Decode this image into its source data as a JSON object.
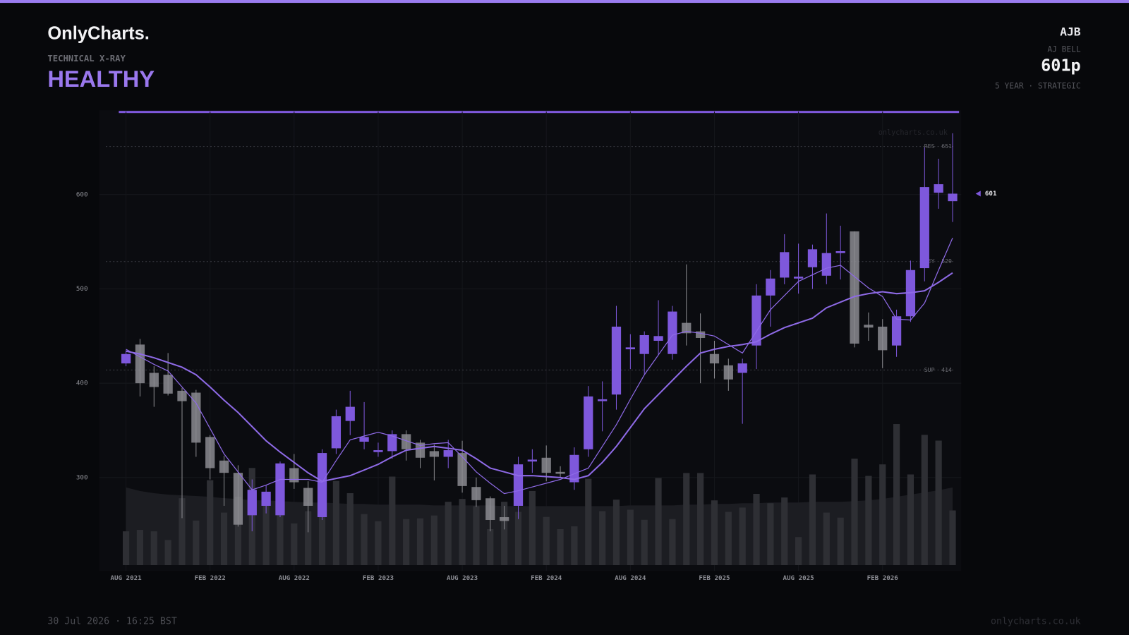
{
  "header": {
    "brand": "OnlyCharts.",
    "subtitle": "TECHNICAL X-RAY",
    "status": "HEALTHY",
    "ticker": "AJB",
    "company": "AJ BELL",
    "price": "601p",
    "horizon": "5 YEAR · STRATEGIC"
  },
  "footer": {
    "timestamp": "30 Jul 2026 · 16:25 BST",
    "site": "onlycharts.co.uk"
  },
  "chart_data": {
    "type": "candlestick",
    "watermark": "onlycharts.co.uk",
    "categories": [
      "AUG 2021",
      null,
      null,
      null,
      null,
      null,
      "FEB 2022",
      null,
      null,
      null,
      null,
      null,
      "AUG 2022",
      null,
      null,
      null,
      null,
      null,
      "FEB 2023",
      null,
      null,
      null,
      null,
      null,
      "AUG 2023",
      null,
      null,
      null,
      null,
      null,
      "FEB 2024",
      null,
      null,
      null,
      null,
      null,
      "AUG 2024",
      null,
      null,
      null,
      null,
      null,
      "FEB 2025",
      null,
      null,
      null,
      null,
      null,
      "AUG 2025",
      null,
      null,
      null,
      null,
      null,
      "FEB 2026",
      null,
      null,
      null,
      null,
      null
    ],
    "open": [
      421,
      441,
      411,
      409,
      392,
      390,
      343,
      318,
      305,
      260,
      270,
      260,
      310,
      289,
      258,
      331,
      360,
      338,
      327,
      328,
      346,
      337,
      328,
      322,
      326,
      290,
      278,
      258,
      270,
      317,
      321,
      306,
      295,
      330,
      381,
      388,
      436,
      431,
      445,
      431,
      464,
      455,
      431,
      419,
      411,
      440,
      493,
      512,
      511,
      523,
      514,
      538,
      561,
      462,
      460,
      440,
      471,
      522,
      602,
      593
    ],
    "high": [
      435,
      447,
      418,
      432,
      395,
      393,
      345,
      323,
      313,
      298,
      292,
      317,
      325,
      296,
      330,
      372,
      392,
      380,
      337,
      350,
      350,
      340,
      335,
      340,
      339,
      300,
      280,
      270,
      322,
      330,
      334,
      312,
      332,
      397,
      402,
      482,
      452,
      455,
      488,
      482,
      526,
      474,
      445,
      426,
      426,
      505,
      520,
      558,
      548,
      547,
      580,
      567,
      561,
      475,
      468,
      478,
      530,
      650,
      638,
      665
    ],
    "low": [
      418,
      386,
      375,
      387,
      257,
      322,
      298,
      270,
      248,
      243,
      262,
      258,
      288,
      242,
      255,
      325,
      345,
      330,
      322,
      320,
      318,
      310,
      297,
      310,
      284,
      269,
      243,
      245,
      256,
      305,
      296,
      300,
      287,
      322,
      349,
      372,
      415,
      410,
      430,
      425,
      440,
      400,
      405,
      392,
      357,
      415,
      460,
      505,
      495,
      500,
      505,
      510,
      438,
      445,
      416,
      428,
      465,
      508,
      585,
      571
    ],
    "close": [
      431,
      400,
      396,
      389,
      381,
      337,
      310,
      305,
      250,
      287,
      285,
      315,
      295,
      270,
      326,
      365,
      375,
      343,
      329,
      346,
      330,
      321,
      322,
      329,
      291,
      276,
      255,
      254,
      314,
      319,
      305,
      304,
      324,
      386,
      383,
      460,
      438,
      451,
      450,
      476,
      453,
      448,
      421,
      404,
      421,
      493,
      511,
      539,
      513,
      542,
      538,
      540,
      442,
      459,
      435,
      471,
      520,
      608,
      611,
      601
    ],
    "up_color": "#7e58dc",
    "down_color": "#8b8b90",
    "ma": [
      {
        "color": "#8e6ae6",
        "width": 2,
        "values": [
          434,
          431,
          427,
          422,
          417,
          409,
          396,
          382,
          369,
          354,
          339,
          327,
          316,
          305,
          296,
          299,
          302,
          308,
          314,
          322,
          329,
          331,
          333,
          331,
          329,
          320,
          310,
          306,
          302,
          302,
          301,
          300,
          298,
          302,
          316,
          333,
          353,
          373,
          388,
          403,
          418,
          432,
          436,
          439,
          441,
          444,
          452,
          459,
          464,
          469,
          480,
          486,
          492,
          495,
          497,
          495,
          496,
          498,
          507,
          517
        ]
      },
      {
        "color": "#8e6ae6",
        "width": 1.2,
        "values": [
          436,
          428,
          420,
          413,
          396,
          379,
          352,
          325,
          306,
          287,
          292,
          298,
          298,
          298,
          295,
          318,
          340,
          344,
          348,
          344,
          339,
          334,
          336,
          337,
          322,
          306,
          294,
          283,
          286,
          290,
          294,
          298,
          304,
          310,
          333,
          356,
          383,
          409,
          430,
          451,
          455,
          453,
          450,
          441,
          432,
          455,
          478,
          493,
          508,
          515,
          522,
          525,
          513,
          501,
          492,
          468,
          467,
          485,
          520,
          554
        ]
      }
    ],
    "volume": {
      "color": "#2e2f34",
      "lim": [
        0,
        200
      ],
      "values": [
        47,
        49,
        47,
        35,
        93,
        62,
        118,
        73,
        95,
        135,
        85,
        85,
        58,
        75,
        88,
        117,
        100,
        71,
        61,
        123,
        64,
        65,
        69,
        88,
        92,
        82,
        50,
        88,
        74,
        103,
        67,
        50,
        54,
        120,
        75,
        91,
        77,
        63,
        121,
        64,
        128,
        128,
        90,
        74,
        80,
        99,
        86,
        94,
        39,
        126,
        73,
        66,
        148,
        124,
        140,
        196,
        126,
        181,
        173,
        76
      ]
    },
    "volume_ma": {
      "color": "#1c1d22",
      "values": [
        108,
        103,
        100,
        98,
        97,
        96,
        95,
        93,
        92,
        90,
        90,
        89,
        88,
        87,
        87,
        86,
        85,
        85,
        84,
        84,
        84,
        84,
        83,
        83,
        83,
        83,
        83,
        82,
        82,
        82,
        82,
        82,
        82,
        82,
        82,
        82,
        83,
        83,
        83,
        83,
        84,
        84,
        85,
        85,
        86,
        86,
        87,
        87,
        87,
        88,
        88,
        88,
        89,
        90,
        92,
        95,
        98,
        101,
        104,
        108
      ]
    },
    "levels": [
      {
        "label": "RES",
        "value": 651
      },
      {
        "label": "KEY",
        "value": 529
      },
      {
        "label": "SUP",
        "value": 414
      }
    ],
    "last_price": 601,
    "ylim": [
      201,
      688
    ],
    "yticks": [
      300,
      400,
      500,
      600
    ],
    "grid": true
  }
}
